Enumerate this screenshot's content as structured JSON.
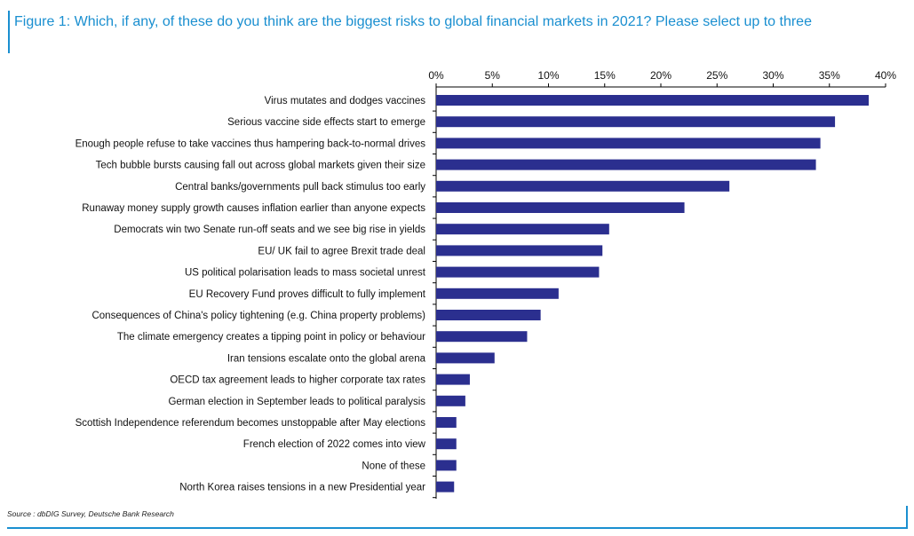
{
  "title": "Figure 1: Which, if any, of these do you think are the biggest risks to global financial markets in 2021? Please select up to three",
  "source": "Source : dbDIG Survey, Deutsche Bank Research",
  "colors": {
    "bar": "#2b2f8f",
    "accent": "#1a8fd0"
  },
  "chart_data": {
    "type": "bar",
    "orientation": "horizontal",
    "xlim": [
      0,
      40
    ],
    "ticks": [
      0,
      5,
      10,
      15,
      20,
      25,
      30,
      35,
      40
    ],
    "tick_labels": [
      "0%",
      "5%",
      "10%",
      "15%",
      "20%",
      "25%",
      "30%",
      "35%",
      "40%"
    ],
    "axis_position": "top",
    "grid": false,
    "categories": [
      "Virus mutates and dodges vaccines",
      "Serious vaccine side effects start to emerge",
      "Enough people refuse to take vaccines thus hampering back-to-normal drives",
      "Tech bubble bursts causing fall out across global markets given their size",
      "Central banks/governments pull back stimulus too early",
      "Runaway money supply growth causes inflation earlier than anyone expects",
      "Democrats win two Senate run-off seats and we see big rise in yields",
      "EU/ UK fail to agree Brexit trade deal",
      "US political polarisation leads to mass societal unrest",
      "EU Recovery Fund proves difficult to fully implement ",
      "Consequences of China's policy tightening (e.g. China property problems)",
      "The climate emergency creates a tipping point in policy or behaviour",
      "Iran tensions escalate onto the global arena",
      "OECD tax agreement leads to higher corporate tax rates",
      "German election in September leads to political paralysis",
      "Scottish Independence referendum becomes unstoppable after May elections",
      "French election of 2022 comes into view ",
      "None of these",
      "North Korea raises tensions in a new Presidential year"
    ],
    "values": [
      38.5,
      35.5,
      34.2,
      33.8,
      26.1,
      22.1,
      15.4,
      14.8,
      14.5,
      10.9,
      9.3,
      8.1,
      5.2,
      3.0,
      2.6,
      1.8,
      1.8,
      1.8,
      1.6
    ]
  }
}
